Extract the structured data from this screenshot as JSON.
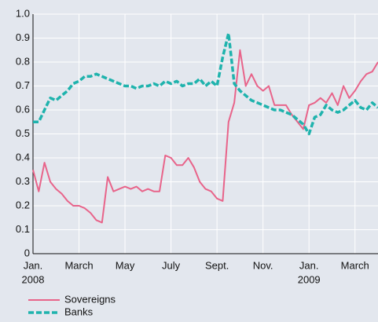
{
  "chart_data": {
    "type": "line",
    "categories": [
      "Jan.",
      null,
      null,
      null,
      null,
      null,
      null,
      null,
      "March",
      null,
      null,
      null,
      null,
      null,
      null,
      null,
      "May",
      null,
      null,
      null,
      null,
      null,
      null,
      null,
      "July",
      null,
      null,
      null,
      null,
      null,
      null,
      null,
      "Sept.",
      null,
      null,
      null,
      null,
      null,
      null,
      null,
      "Nov.",
      null,
      null,
      null,
      null,
      null,
      null,
      null,
      "Jan.",
      null,
      null,
      null,
      null,
      null,
      null,
      null,
      "March",
      null,
      null,
      null,
      null
    ],
    "year_labels": [
      "2008",
      "2009"
    ],
    "series": [
      {
        "name": "Sovereigns",
        "color": "#e8648a",
        "line_style": "solid",
        "values": [
          0.35,
          0.26,
          0.38,
          0.3,
          0.27,
          0.25,
          0.22,
          0.2,
          0.2,
          0.19,
          0.17,
          0.14,
          0.13,
          0.32,
          0.26,
          0.27,
          0.28,
          0.27,
          0.28,
          0.26,
          0.27,
          0.26,
          0.26,
          0.41,
          0.4,
          0.37,
          0.37,
          0.4,
          0.36,
          0.3,
          0.27,
          0.26,
          0.23,
          0.22,
          0.55,
          0.63,
          0.85,
          0.7,
          0.75,
          0.7,
          0.68,
          0.7,
          0.62,
          0.62,
          0.62,
          0.58,
          0.55,
          0.52,
          0.62,
          0.63,
          0.65,
          0.63,
          0.67,
          0.62,
          0.7,
          0.65,
          0.68,
          0.72,
          0.75,
          0.76,
          0.8
        ]
      },
      {
        "name": "Banks",
        "color": "#1fb3ad",
        "line_style": "dashed",
        "values": [
          0.55,
          0.55,
          0.6,
          0.65,
          0.64,
          0.66,
          0.68,
          0.71,
          0.72,
          0.74,
          0.74,
          0.75,
          0.74,
          0.73,
          0.72,
          0.71,
          0.7,
          0.7,
          0.69,
          0.7,
          0.7,
          0.71,
          0.7,
          0.72,
          0.71,
          0.72,
          0.7,
          0.71,
          0.71,
          0.73,
          0.7,
          0.72,
          0.7,
          0.82,
          0.92,
          0.71,
          0.68,
          0.66,
          0.64,
          0.63,
          0.62,
          0.61,
          0.6,
          0.6,
          0.59,
          0.58,
          0.56,
          0.54,
          0.5,
          0.57,
          0.58,
          0.62,
          0.6,
          0.59,
          0.6,
          0.62,
          0.64,
          0.61,
          0.6,
          0.63,
          0.61
        ]
      }
    ],
    "ylim": [
      0,
      1
    ],
    "yticks": [
      0,
      0.1,
      0.2,
      0.3,
      0.4,
      0.5,
      0.6,
      0.7,
      0.8,
      0.9,
      {
        "value": 1,
        "label": "1.0"
      }
    ],
    "grid": true,
    "legend": "bottom-left"
  }
}
